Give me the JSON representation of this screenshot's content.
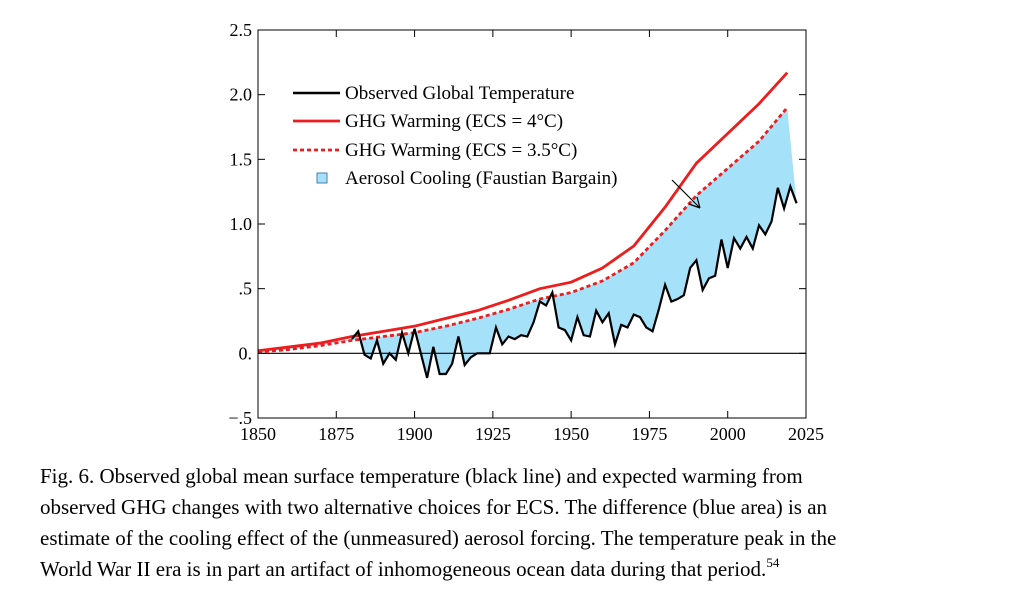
{
  "chart_data": {
    "type": "line",
    "xlim": [
      1850,
      2025
    ],
    "xticks": [
      1850,
      1875,
      1900,
      1925,
      1950,
      1975,
      2000,
      2025
    ],
    "ylim": [
      -0.5,
      2.5
    ],
    "yticks": [
      {
        "value": 2.5,
        "label": "2.5"
      },
      {
        "value": 2.0,
        "label": "2.0"
      },
      {
        "value": 1.5,
        "label": "1.5"
      },
      {
        "value": 1.0,
        "label": "1.0"
      },
      {
        "value": 0.5,
        "label": ".5"
      },
      {
        "value": 0,
        "label": "0."
      },
      {
        "value": -0.5,
        "label": "−.5"
      }
    ],
    "series": [
      {
        "name": "Observed Global Temperature",
        "color": "#000000",
        "style": "solid",
        "x": [
          1880,
          1882,
          1884,
          1886,
          1888,
          1890,
          1892,
          1894,
          1896,
          1898,
          1900,
          1902,
          1904,
          1906,
          1908,
          1910,
          1912,
          1914,
          1916,
          1918,
          1920,
          1922,
          1924,
          1926,
          1928,
          1930,
          1932,
          1934,
          1936,
          1938,
          1940,
          1942,
          1944,
          1946,
          1948,
          1950,
          1952,
          1954,
          1956,
          1958,
          1960,
          1962,
          1964,
          1966,
          1968,
          1970,
          1972,
          1974,
          1976,
          1978,
          1980,
          1982,
          1984,
          1986,
          1988,
          1990,
          1992,
          1994,
          1996,
          1998,
          2000,
          2002,
          2004,
          2006,
          2008,
          2010,
          2012,
          2014,
          2016,
          2018,
          2020,
          2022
        ],
        "values": [
          0.11,
          0.17,
          -0.01,
          -0.04,
          0.1,
          -0.08,
          0.0,
          -0.05,
          0.16,
          0.0,
          0.19,
          0.0,
          -0.19,
          0.05,
          -0.16,
          -0.16,
          -0.08,
          0.13,
          -0.09,
          -0.03,
          0.0,
          0.0,
          0.0,
          0.2,
          0.07,
          0.13,
          0.11,
          0.14,
          0.13,
          0.24,
          0.4,
          0.37,
          0.47,
          0.2,
          0.18,
          0.1,
          0.28,
          0.14,
          0.13,
          0.33,
          0.24,
          0.31,
          0.07,
          0.22,
          0.2,
          0.3,
          0.28,
          0.2,
          0.17,
          0.34,
          0.53,
          0.4,
          0.42,
          0.45,
          0.66,
          0.72,
          0.49,
          0.58,
          0.6,
          0.88,
          0.66,
          0.89,
          0.81,
          0.9,
          0.81,
          0.99,
          0.92,
          1.02,
          1.28,
          1.12,
          1.29,
          1.16
        ]
      },
      {
        "name": "GHG Warming (ECS = 4°C)",
        "color": "#ee1c1c",
        "style": "solid",
        "x": [
          1850,
          1860,
          1870,
          1880,
          1890,
          1900,
          1910,
          1920,
          1930,
          1940,
          1950,
          1960,
          1970,
          1980,
          1990,
          2000,
          2010,
          2019
        ],
        "values": [
          0.02,
          0.05,
          0.08,
          0.13,
          0.17,
          0.21,
          0.27,
          0.33,
          0.41,
          0.5,
          0.55,
          0.66,
          0.83,
          1.13,
          1.47,
          1.7,
          1.93,
          2.17
        ]
      },
      {
        "name": "GHG Warming (ECS = 3.5°C)",
        "color": "#ee1c1c",
        "style": "dotted",
        "x": [
          1850,
          1860,
          1870,
          1880,
          1890,
          1900,
          1910,
          1920,
          1930,
          1940,
          1950,
          1960,
          1970,
          1980,
          1990,
          2000,
          2010,
          2019
        ],
        "values": [
          0.01,
          0.03,
          0.06,
          0.1,
          0.13,
          0.16,
          0.21,
          0.27,
          0.34,
          0.42,
          0.47,
          0.56,
          0.7,
          0.95,
          1.22,
          1.43,
          1.64,
          1.9
        ]
      },
      {
        "name": "Aerosol Cooling (Faustian Bargain)",
        "color": "#a6e1fa"
      }
    ]
  },
  "caption": {
    "lines": [
      "Fig. 6.  Observed global mean surface temperature (black line) and expected warming from",
      "observed GHG changes with two alternative choices for ECS. The difference (blue area) is an",
      "estimate of the cooling effect of the (unmeasured) aerosol forcing. The temperature peak in the",
      "World War II era is in part an artifact of inhomogeneous ocean data during that period."
    ],
    "reference": "54"
  }
}
